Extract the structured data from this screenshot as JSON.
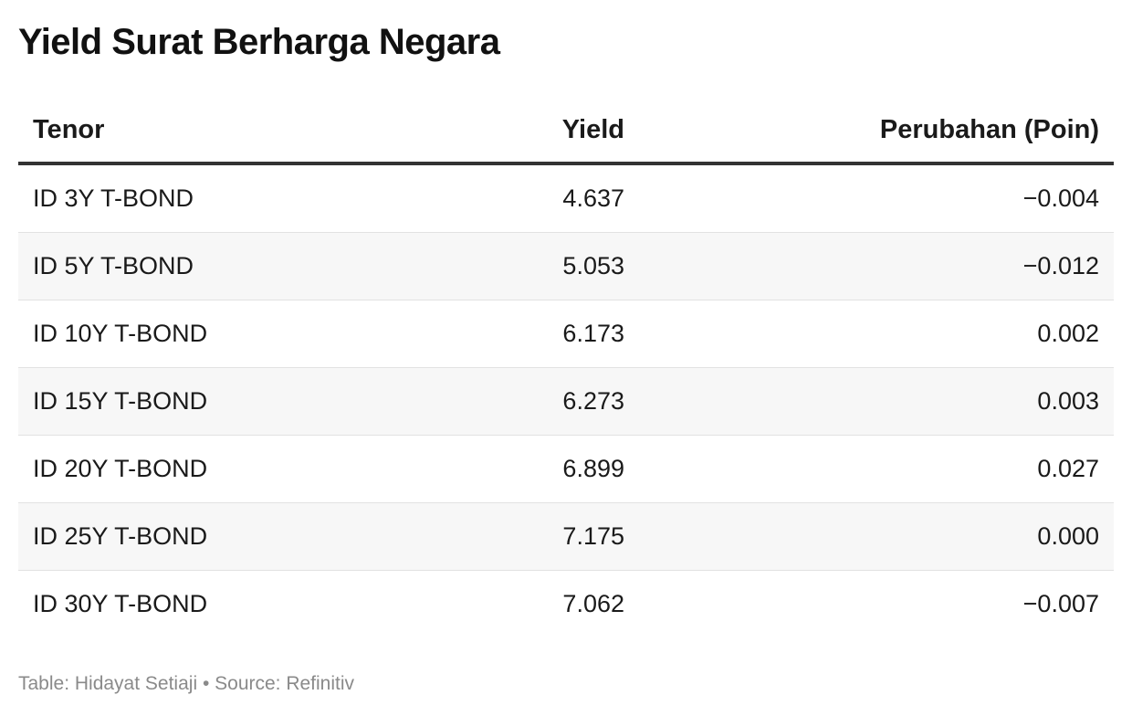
{
  "title": "Yield Surat Berharga Negara",
  "chart_data": {
    "type": "table",
    "title": "Yield Surat Berharga Negara",
    "columns": [
      "Tenor",
      "Yield",
      "Perubahan (Poin)"
    ],
    "rows": [
      {
        "tenor": "ID 3Y T-BOND",
        "yield": "4.637",
        "change": "−0.004"
      },
      {
        "tenor": "ID 5Y T-BOND",
        "yield": "5.053",
        "change": "−0.012"
      },
      {
        "tenor": "ID 10Y T-BOND",
        "yield": "6.173",
        "change": "0.002"
      },
      {
        "tenor": "ID 15Y T-BOND",
        "yield": "6.273",
        "change": "0.003"
      },
      {
        "tenor": "ID 20Y T-BOND",
        "yield": "6.899",
        "change": "0.027"
      },
      {
        "tenor": "ID 25Y T-BOND",
        "yield": "7.175",
        "change": "0.000"
      },
      {
        "tenor": "ID 30Y T-BOND",
        "yield": "7.062",
        "change": "−0.007"
      }
    ]
  },
  "footer": "Table: Hidayat Setiaji • Source: Refinitiv"
}
